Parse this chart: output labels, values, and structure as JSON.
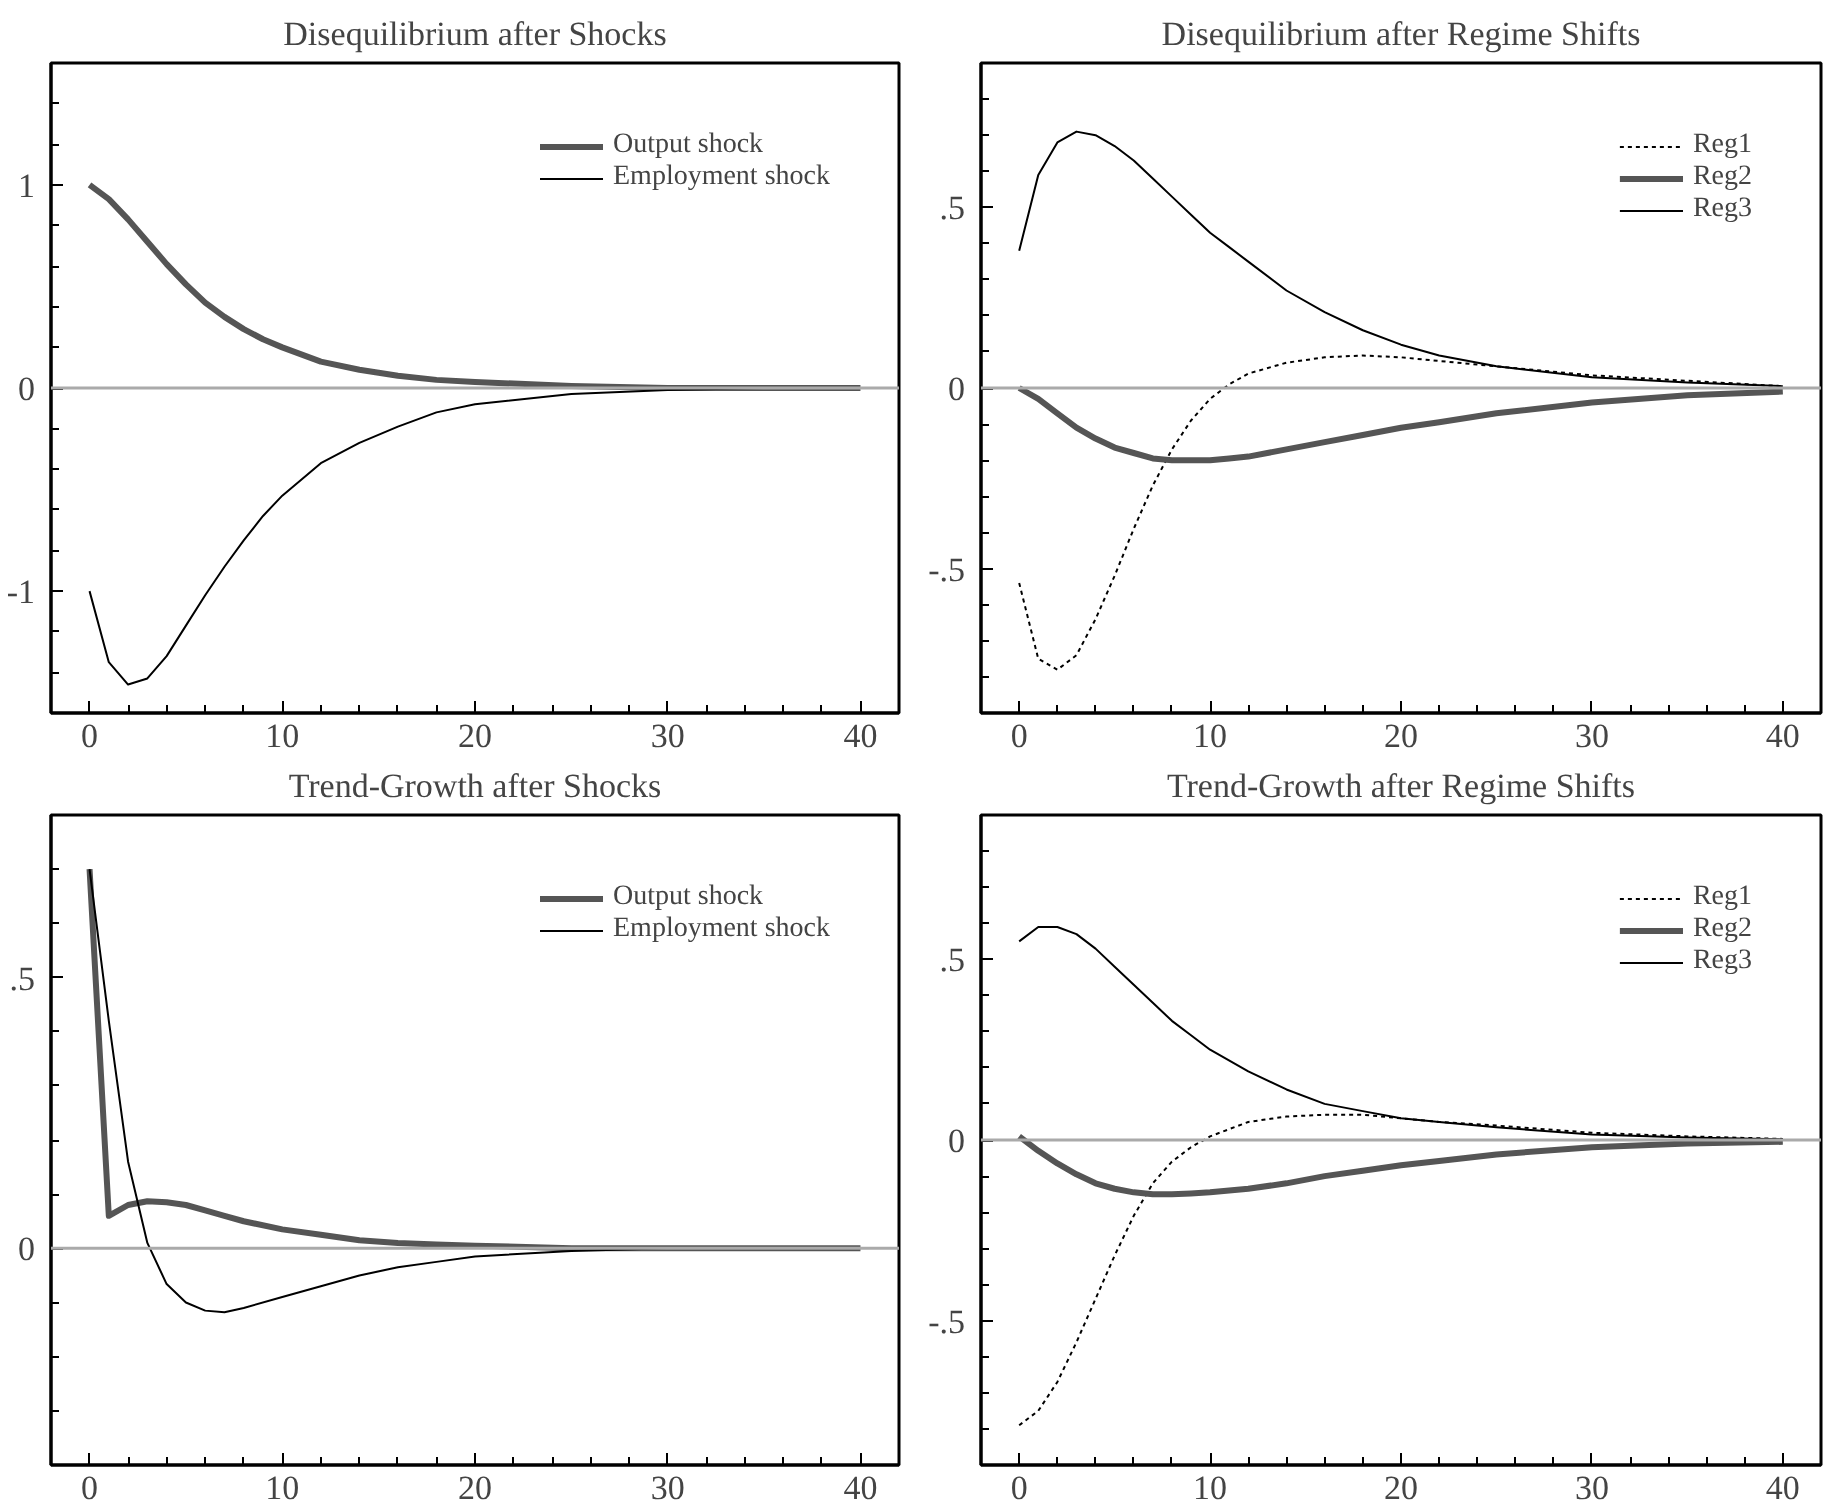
{
  "chart_data": [
    {
      "type": "line",
      "title": "Disequilibrium after Shocks",
      "xlim": [
        -2,
        42
      ],
      "ylim": [
        -1.6,
        1.6
      ],
      "xticks": [
        0,
        {
          "value": 2,
          "label": null
        },
        {
          "value": 4,
          "label": null
        },
        {
          "value": 6,
          "label": null
        },
        {
          "value": 8,
          "label": null
        },
        10,
        {
          "value": 12,
          "label": null
        },
        {
          "value": 14,
          "label": null
        },
        {
          "value": 16,
          "label": null
        },
        {
          "value": 18,
          "label": null
        },
        20,
        {
          "value": 22,
          "label": null
        },
        {
          "value": 24,
          "label": null
        },
        {
          "value": 26,
          "label": null
        },
        {
          "value": 28,
          "label": null
        },
        30,
        {
          "value": 32,
          "label": null
        },
        {
          "value": 34,
          "label": null
        },
        {
          "value": 36,
          "label": null
        },
        {
          "value": 38,
          "label": null
        },
        40
      ],
      "yticks": [
        {
          "value": -1.4,
          "label": null
        },
        {
          "value": -1.2,
          "label": null
        },
        -1,
        {
          "value": -0.8,
          "label": null
        },
        {
          "value": -0.6,
          "label": null
        },
        {
          "value": -0.4,
          "label": null
        },
        {
          "value": -0.2,
          "label": null
        },
        0,
        {
          "value": 0.2,
          "label": null
        },
        {
          "value": 0.4,
          "label": null
        },
        {
          "value": 0.6,
          "label": null
        },
        {
          "value": 0.8,
          "label": null
        },
        1,
        {
          "value": 1.2,
          "label": null
        },
        {
          "value": 1.4,
          "label": null
        }
      ],
      "grid": false,
      "legend": "top right",
      "ref_lines": [
        {
          "axis": "y",
          "value": 0,
          "label": null,
          "color": "#aaaaaa"
        }
      ],
      "x": [
        0,
        1,
        2,
        3,
        4,
        5,
        6,
        7,
        8,
        9,
        10,
        12,
        14,
        16,
        18,
        20,
        25,
        30,
        35,
        40
      ],
      "series": [
        {
          "name": "Output shock",
          "color": "#555555",
          "line_style": "solid",
          "values": [
            1,
            0.93,
            0.83,
            0.72,
            0.61,
            0.51,
            0.42,
            0.35,
            0.29,
            0.24,
            0.2,
            0.13,
            0.09,
            0.06,
            0.04,
            0.03,
            0.01,
            0,
            0,
            0
          ]
        },
        {
          "name": "Employment shock",
          "color": "#000000",
          "line_style": "solid",
          "values": [
            -1,
            -1.35,
            -1.46,
            -1.43,
            -1.32,
            -1.17,
            -1.02,
            -0.88,
            -0.75,
            -0.63,
            -0.53,
            -0.37,
            -0.27,
            -0.19,
            -0.12,
            -0.08,
            -0.03,
            -0.01,
            0,
            0
          ]
        }
      ]
    },
    {
      "type": "line",
      "title": "Disequilibrium after Regime Shifts",
      "xlim": [
        -2,
        42
      ],
      "ylim": [
        -0.9,
        0.9
      ],
      "xticks": [
        0,
        {
          "value": 2,
          "label": null
        },
        {
          "value": 4,
          "label": null
        },
        {
          "value": 6,
          "label": null
        },
        {
          "value": 8,
          "label": null
        },
        10,
        {
          "value": 12,
          "label": null
        },
        {
          "value": 14,
          "label": null
        },
        {
          "value": 16,
          "label": null
        },
        {
          "value": 18,
          "label": null
        },
        20,
        {
          "value": 22,
          "label": null
        },
        {
          "value": 24,
          "label": null
        },
        {
          "value": 26,
          "label": null
        },
        {
          "value": 28,
          "label": null
        },
        30,
        {
          "value": 32,
          "label": null
        },
        {
          "value": 34,
          "label": null
        },
        {
          "value": 36,
          "label": null
        },
        {
          "value": 38,
          "label": null
        },
        40
      ],
      "yticks": [
        {
          "value": -0.8,
          "label": null
        },
        {
          "value": -0.7,
          "label": null
        },
        {
          "value": -0.6,
          "label": null
        },
        {
          "value": -0.5,
          "label": "-.5"
        },
        {
          "value": -0.4,
          "label": null
        },
        {
          "value": -0.3,
          "label": null
        },
        {
          "value": -0.2,
          "label": null
        },
        {
          "value": -0.1,
          "label": null
        },
        0,
        {
          "value": 0.1,
          "label": null
        },
        {
          "value": 0.2,
          "label": null
        },
        {
          "value": 0.3,
          "label": null
        },
        {
          "value": 0.4,
          "label": null
        },
        {
          "value": 0.5,
          "label": ".5"
        },
        {
          "value": 0.6,
          "label": null
        },
        {
          "value": 0.7,
          "label": null
        },
        {
          "value": 0.8,
          "label": null
        }
      ],
      "grid": false,
      "legend": "top right",
      "ref_lines": [
        {
          "axis": "y",
          "value": 0,
          "label": null,
          "color": "#aaaaaa"
        }
      ],
      "x": [
        0,
        1,
        2,
        3,
        4,
        5,
        6,
        7,
        8,
        9,
        10,
        11,
        12,
        14,
        16,
        18,
        20,
        22,
        25,
        30,
        35,
        40
      ],
      "series": [
        {
          "name": "Reg1",
          "color": "#000000",
          "line_style": "dotted",
          "values": [
            -0.54,
            -0.75,
            -0.78,
            -0.74,
            -0.64,
            -0.52,
            -0.39,
            -0.27,
            -0.17,
            -0.09,
            -0.03,
            0.01,
            0.04,
            0.07,
            0.085,
            0.09,
            0.085,
            0.075,
            0.06,
            0.035,
            0.02,
            0.005
          ]
        },
        {
          "name": "Reg2",
          "color": "#555555",
          "line_style": "solid",
          "values": [
            0,
            -0.03,
            -0.07,
            -0.11,
            -0.14,
            -0.165,
            -0.18,
            -0.195,
            -0.2,
            -0.2,
            -0.2,
            -0.195,
            -0.19,
            -0.17,
            -0.15,
            -0.13,
            -0.11,
            -0.095,
            -0.07,
            -0.04,
            -0.02,
            -0.01
          ]
        },
        {
          "name": "Reg3",
          "color": "#000000",
          "line_style": "solid",
          "values": [
            0.38,
            0.59,
            0.68,
            0.71,
            0.7,
            0.67,
            0.63,
            0.58,
            0.53,
            0.48,
            0.43,
            0.39,
            0.35,
            0.27,
            0.21,
            0.16,
            0.12,
            0.09,
            0.06,
            0.03,
            0.015,
            0.005
          ]
        }
      ]
    },
    {
      "type": "line",
      "title": "Trend-Growth after Shocks",
      "xlim": [
        -2,
        42
      ],
      "ylim": [
        -0.4,
        0.8
      ],
      "xticks": [
        0,
        {
          "value": 2,
          "label": null
        },
        {
          "value": 4,
          "label": null
        },
        {
          "value": 6,
          "label": null
        },
        {
          "value": 8,
          "label": null
        },
        10,
        {
          "value": 12,
          "label": null
        },
        {
          "value": 14,
          "label": null
        },
        {
          "value": 16,
          "label": null
        },
        {
          "value": 18,
          "label": null
        },
        20,
        {
          "value": 22,
          "label": null
        },
        {
          "value": 24,
          "label": null
        },
        {
          "value": 26,
          "label": null
        },
        {
          "value": 28,
          "label": null
        },
        30,
        {
          "value": 32,
          "label": null
        },
        {
          "value": 34,
          "label": null
        },
        {
          "value": 36,
          "label": null
        },
        {
          "value": 38,
          "label": null
        },
        40
      ],
      "yticks": [
        {
          "value": -0.3,
          "label": null
        },
        {
          "value": -0.2,
          "label": null
        },
        {
          "value": -0.1,
          "label": null
        },
        0,
        {
          "value": 0.1,
          "label": null
        },
        {
          "value": 0.2,
          "label": null
        },
        {
          "value": 0.3,
          "label": null
        },
        {
          "value": 0.4,
          "label": null
        },
        {
          "value": 0.5,
          "label": ".5"
        },
        {
          "value": 0.6,
          "label": null
        },
        {
          "value": 0.7,
          "label": null
        }
      ],
      "grid": false,
      "legend": "top right",
      "ref_lines": [
        {
          "axis": "y",
          "value": 0,
          "label": null,
          "color": "#aaaaaa"
        }
      ],
      "x": [
        0,
        1,
        2,
        3,
        4,
        5,
        6,
        7,
        8,
        10,
        12,
        14,
        16,
        18,
        20,
        25,
        30,
        35,
        40
      ],
      "series": [
        {
          "name": "Output shock",
          "color": "#555555",
          "line_style": "solid",
          "values": [
            0.7,
            0.06,
            0.08,
            0.087,
            0.085,
            0.08,
            0.07,
            0.06,
            0.05,
            0.035,
            0.025,
            0.015,
            0.01,
            0.007,
            0.005,
            0,
            0,
            0,
            0
          ]
        },
        {
          "name": "Employment shock",
          "color": "#000000",
          "line_style": "solid",
          "values": [
            0.7,
            0.42,
            0.16,
            0.01,
            -0.066,
            -0.1,
            -0.115,
            -0.118,
            -0.11,
            -0.09,
            -0.07,
            -0.05,
            -0.035,
            -0.025,
            -0.015,
            -0.005,
            0,
            0,
            0
          ]
        }
      ]
    },
    {
      "type": "line",
      "title": "Trend-Growth after Regime Shifts",
      "xlim": [
        -2,
        42
      ],
      "ylim": [
        -0.9,
        0.9
      ],
      "xticks": [
        0,
        {
          "value": 2,
          "label": null
        },
        {
          "value": 4,
          "label": null
        },
        {
          "value": 6,
          "label": null
        },
        {
          "value": 8,
          "label": null
        },
        10,
        {
          "value": 12,
          "label": null
        },
        {
          "value": 14,
          "label": null
        },
        {
          "value": 16,
          "label": null
        },
        {
          "value": 18,
          "label": null
        },
        20,
        {
          "value": 22,
          "label": null
        },
        {
          "value": 24,
          "label": null
        },
        {
          "value": 26,
          "label": null
        },
        {
          "value": 28,
          "label": null
        },
        30,
        {
          "value": 32,
          "label": null
        },
        {
          "value": 34,
          "label": null
        },
        {
          "value": 36,
          "label": null
        },
        {
          "value": 38,
          "label": null
        },
        40
      ],
      "yticks": [
        {
          "value": -0.8,
          "label": null
        },
        {
          "value": -0.7,
          "label": null
        },
        {
          "value": -0.6,
          "label": null
        },
        {
          "value": -0.5,
          "label": "-.5"
        },
        {
          "value": -0.4,
          "label": null
        },
        {
          "value": -0.3,
          "label": null
        },
        {
          "value": -0.2,
          "label": null
        },
        {
          "value": -0.1,
          "label": null
        },
        0,
        {
          "value": 0.1,
          "label": null
        },
        {
          "value": 0.2,
          "label": null
        },
        {
          "value": 0.3,
          "label": null
        },
        {
          "value": 0.4,
          "label": null
        },
        {
          "value": 0.5,
          "label": ".5"
        },
        {
          "value": 0.6,
          "label": null
        },
        {
          "value": 0.7,
          "label": null
        },
        {
          "value": 0.8,
          "label": null
        }
      ],
      "grid": false,
      "legend": "top right",
      "ref_lines": [
        {
          "axis": "y",
          "value": 0,
          "label": null,
          "color": "#aaaaaa"
        }
      ],
      "x": [
        0,
        1,
        2,
        3,
        4,
        5,
        6,
        7,
        8,
        9,
        10,
        12,
        14,
        16,
        18,
        20,
        22,
        25,
        30,
        35,
        40
      ],
      "series": [
        {
          "name": "Reg1",
          "color": "#000000",
          "line_style": "dotted",
          "values": [
            -0.79,
            -0.75,
            -0.67,
            -0.56,
            -0.44,
            -0.32,
            -0.21,
            -0.12,
            -0.06,
            -0.02,
            0.01,
            0.05,
            0.065,
            0.07,
            0.07,
            0.06,
            0.05,
            0.04,
            0.02,
            0.01,
            0.003
          ]
        },
        {
          "name": "Reg2",
          "color": "#555555",
          "line_style": "solid",
          "values": [
            0.01,
            -0.03,
            -0.065,
            -0.095,
            -0.12,
            -0.135,
            -0.145,
            -0.15,
            -0.15,
            -0.148,
            -0.145,
            -0.135,
            -0.12,
            -0.1,
            -0.085,
            -0.07,
            -0.058,
            -0.04,
            -0.02,
            -0.01,
            -0.005
          ]
        },
        {
          "name": "Reg3",
          "color": "#000000",
          "line_style": "solid",
          "values": [
            0.55,
            0.59,
            0.59,
            0.57,
            0.53,
            0.48,
            0.43,
            0.38,
            0.33,
            0.29,
            0.25,
            0.19,
            0.14,
            0.1,
            0.08,
            0.06,
            0.05,
            0.035,
            0.015,
            0.007,
            0.002
          ]
        }
      ]
    }
  ]
}
